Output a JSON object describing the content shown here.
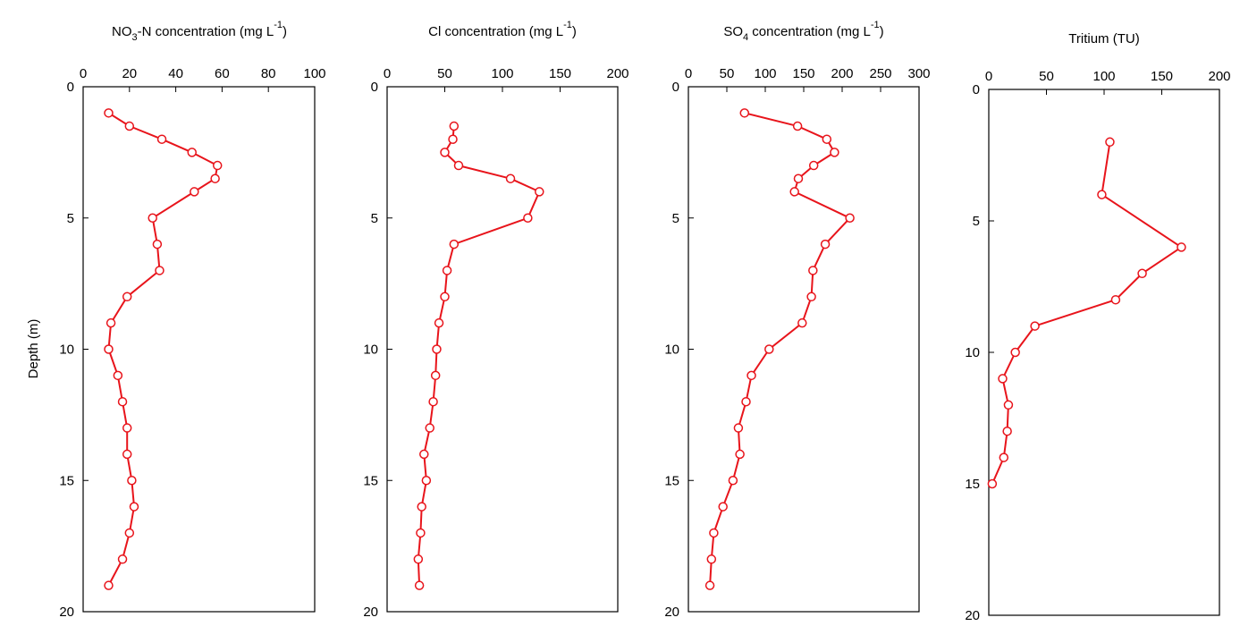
{
  "figure": {
    "ylabel": "Depth (m)"
  },
  "chart_data": [
    {
      "type": "line",
      "title_parts": {
        "pre": "NO",
        "sub": "3",
        "mid": "-N concentration (mg L",
        "sup": "-1",
        "post": ")"
      },
      "ylabel": "Depth (m)",
      "xlim": [
        0,
        100
      ],
      "ylim": [
        0,
        20
      ],
      "xticks": [
        "0",
        "20",
        "40",
        "60",
        "80",
        "100"
      ],
      "yticks": [
        "0",
        "5",
        "10",
        "15",
        "20"
      ],
      "line_color": "#e8141b",
      "series": [
        {
          "x": [
            11,
            20,
            34,
            47,
            58,
            57,
            48,
            30,
            32,
            33,
            19,
            12,
            11,
            15,
            17,
            19,
            19,
            21,
            22,
            20,
            17,
            11
          ],
          "y": [
            1,
            1.5,
            2,
            2.5,
            3,
            3.5,
            4,
            5,
            6,
            7,
            8,
            9,
            10,
            11,
            12,
            13,
            14,
            15,
            16,
            17,
            18,
            19
          ]
        }
      ]
    },
    {
      "type": "line",
      "title_parts": {
        "pre": "Cl concentration (mg L",
        "sup": "-1",
        "post": ")"
      },
      "xlim": [
        0,
        200
      ],
      "ylim": [
        0,
        20
      ],
      "xticks": [
        "0",
        "50",
        "100",
        "150",
        "200"
      ],
      "yticks": [
        "0",
        "5",
        "10",
        "15",
        "20"
      ],
      "line_color": "#e8141b",
      "series": [
        {
          "x": [
            58,
            57,
            50,
            62,
            107,
            132,
            122,
            58,
            52,
            50,
            45,
            43,
            42,
            40,
            37,
            32,
            34,
            30,
            29,
            27,
            28
          ],
          "y": [
            1.5,
            2,
            2.5,
            3,
            3.5,
            4,
            5,
            6,
            7,
            8,
            9,
            10,
            11,
            12,
            13,
            14,
            15,
            16,
            17,
            18,
            19
          ]
        }
      ]
    },
    {
      "type": "line",
      "title_parts": {
        "pre": "SO",
        "sub": "4",
        "mid": " concentration (mg L",
        "sup": "-1",
        "post": ")"
      },
      "xlim": [
        0,
        300
      ],
      "ylim": [
        0,
        20
      ],
      "xticks": [
        "0",
        "50",
        "100",
        "150",
        "200",
        "250",
        "300"
      ],
      "yticks": [
        "0",
        "5",
        "10",
        "15",
        "20"
      ],
      "line_color": "#e8141b",
      "series": [
        {
          "x": [
            73,
            142,
            180,
            190,
            163,
            143,
            138,
            210,
            178,
            162,
            160,
            148,
            105,
            82,
            75,
            65,
            67,
            58,
            45,
            33,
            30,
            28
          ],
          "y": [
            1,
            1.5,
            2,
            2.5,
            3,
            3.5,
            4,
            5,
            6,
            7,
            8,
            9,
            10,
            11,
            12,
            13,
            14,
            15,
            16,
            17,
            18,
            19
          ]
        }
      ]
    },
    {
      "type": "line",
      "title_parts": {
        "pre": "Tritium (TU)"
      },
      "xlim": [
        0,
        200
      ],
      "ylim": [
        0,
        20
      ],
      "xticks": [
        "0",
        "50",
        "100",
        "150",
        "200"
      ],
      "yticks": [
        "0",
        "5",
        "10",
        "15",
        "20"
      ],
      "line_color": "#e8141b",
      "series": [
        {
          "x": [
            105,
            98,
            167,
            133,
            110,
            40,
            23,
            12,
            17,
            16,
            13,
            3
          ],
          "y": [
            2,
            4,
            6,
            7,
            8,
            9,
            10,
            11,
            12,
            13,
            14,
            15
          ]
        }
      ]
    }
  ]
}
